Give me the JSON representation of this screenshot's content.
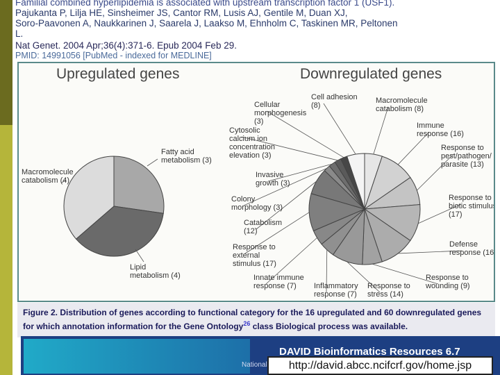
{
  "header": {
    "title": "Familial combined hyperlipidemia is associated with upstream transcription factor 1 (USF1).",
    "authors": "Pajukanta P, Lilja HE, Sinsheimer JS, Cantor RM, Lusis AJ, Gentile M, Duan XJ,\nSoro-Paavonen A, Naukkarinen J, Saarela J, Laakso M, Ehnholm C, Taskinen MR, Peltonen\nL.",
    "journal": "Nat Genet. 2004 Apr;36(4):371-6. Epub 2004 Feb 29.",
    "pmid": "PMID: 14991056 [PubMed - indexed for MEDLINE]"
  },
  "figure": {
    "up_title": "Upregulated genes",
    "down_title": "Downregulated genes",
    "caption_prefix": "Figure 2.",
    "caption_main": "Distribution of genes according to functional category for the 16 upregulated and 60 downregulated genes for which annotation information for the Gene Ontology",
    "caption_ref": "26",
    "caption_end": "class Biological process was available."
  },
  "chart_data": [
    {
      "type": "pie",
      "title": "Upregulated genes",
      "slices": [
        {
          "label": "Fatty acid metabolism",
          "value": 3,
          "color": "#a8a8a8"
        },
        {
          "label": "Lipid metabolism",
          "value": 4,
          "color": "#6a6a6a"
        },
        {
          "label": "Macromolecule catabolism",
          "value": 4,
          "color": "#dcdcdc"
        }
      ]
    },
    {
      "type": "pie",
      "title": "Downregulated genes",
      "slices": [
        {
          "label": "Macromolecule catabolism",
          "value": 8,
          "color": "#e6e6e6"
        },
        {
          "label": "Immune response",
          "value": 16,
          "color": "#d2d2d2"
        },
        {
          "label": "Response to pest/pathogen/parasite",
          "value": 13,
          "color": "#c4c4c4"
        },
        {
          "label": "Response to biotic stimulus",
          "value": 17,
          "color": "#b6b6b6"
        },
        {
          "label": "Defense response",
          "value": 16,
          "color": "#acacac"
        },
        {
          "label": "Response to wounding",
          "value": 9,
          "color": "#a2a2a2"
        },
        {
          "label": "Response to stress",
          "value": 14,
          "color": "#999999"
        },
        {
          "label": "Inflammatory response",
          "value": 7,
          "color": "#909090"
        },
        {
          "label": "Innate immune response",
          "value": 7,
          "color": "#888888"
        },
        {
          "label": "Response to external stimulus",
          "value": 17,
          "color": "#7f7f7f"
        },
        {
          "label": "Catabolism",
          "value": 12,
          "color": "#787878"
        },
        {
          "label": "Colony morphology",
          "value": 3,
          "color": "#8a8a8a"
        },
        {
          "label": "Invasive growth",
          "value": 3,
          "color": "#6e6e6e"
        },
        {
          "label": "Cytosolic calcium ion concentration elevation",
          "value": 3,
          "color": "#5a5a5a"
        },
        {
          "label": "Cellular morphogenesis",
          "value": 3,
          "color": "#474747"
        },
        {
          "label": "Cell adhesion",
          "value": 8,
          "color": "#f4f4f4"
        }
      ]
    }
  ],
  "footer": {
    "title": "DAVID Bioinformatics Resources 6.7",
    "subtitle": "National",
    "url": "http://david.abcc.ncifcrf.gov/home.jsp"
  },
  "colors": {
    "accent": "#1d3f82",
    "side_dark": "#6b6b1f",
    "side_olive": "#b5b53a"
  }
}
